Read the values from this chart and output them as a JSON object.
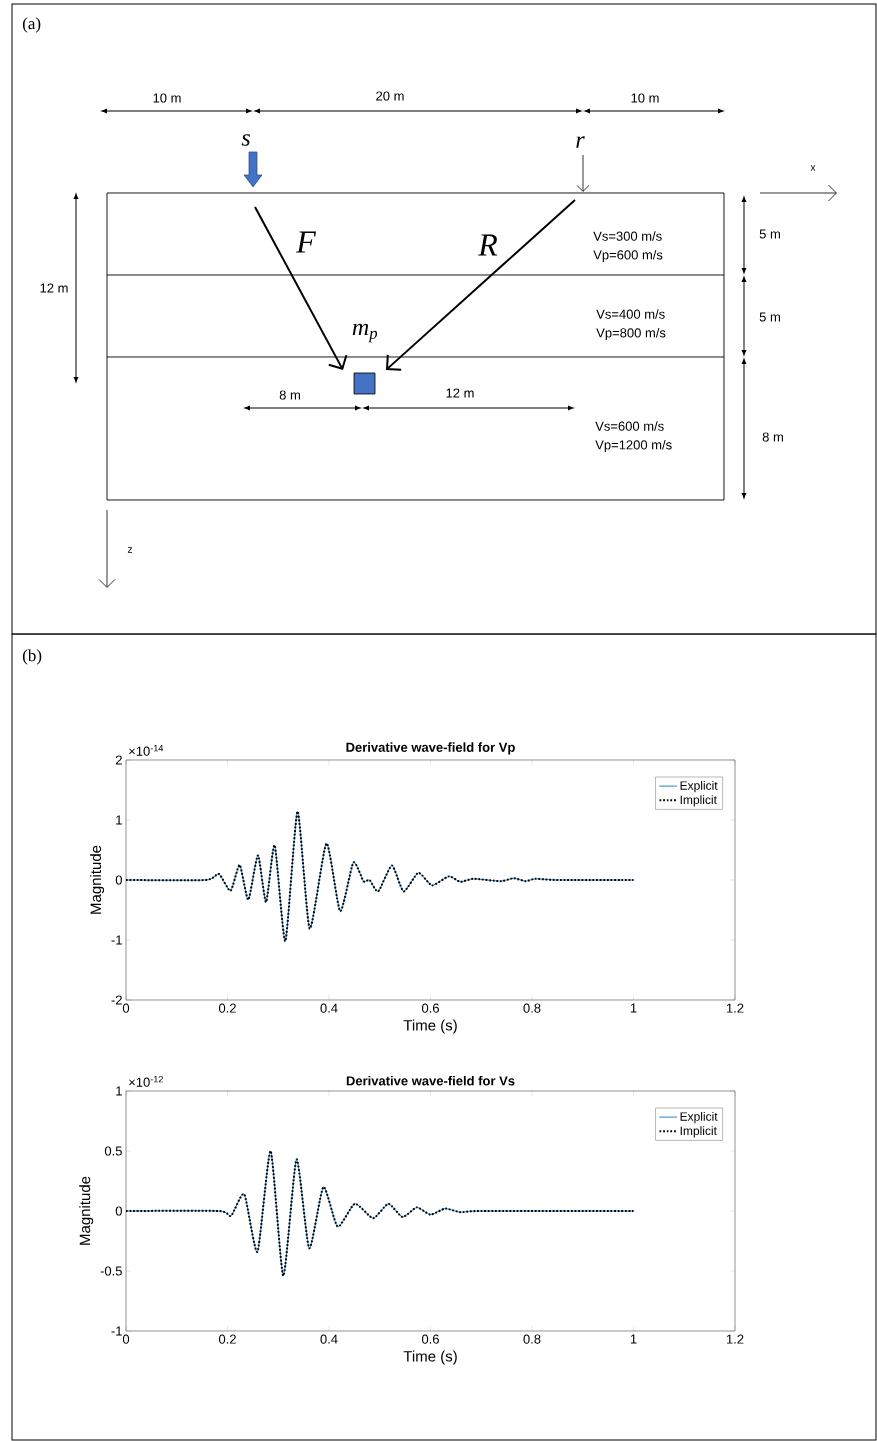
{
  "chart_data": [
    {
      "type": "other",
      "annotations": [
        "(a)",
        "10 m",
        "20 m",
        "10 m",
        "s",
        "r",
        "x",
        "F",
        "R",
        "Vs=300 m/s",
        "Vp=600 m/s",
        "12 m",
        "5 m",
        "Vs=400 m/s",
        "Vp=800 m/s",
        "5 m",
        "m$_{p}$",
        "8 m",
        "12 m",
        "Vs=600 m/s",
        "Vp=1200 m/s",
        "8 m",
        "z"
      ]
    },
    {
      "type": "line",
      "title": "Derivative wave-field for Vp",
      "xlabel": "Time (s)",
      "ylabel": "Magnitude",
      "annotations": [
        "(b)",
        "×10$^{-14}$"
      ],
      "x": [
        0,
        0.157,
        0.183,
        0.206,
        0.224,
        0.241,
        0.26,
        0.276,
        0.293,
        0.314,
        0.338,
        0.362,
        0.395,
        0.422,
        0.448,
        0.468,
        0.48,
        0.497,
        0.524,
        0.547,
        0.576,
        0.603,
        0.636,
        0.659,
        0.685,
        0.738,
        0.764,
        0.787,
        0.807,
        0.85,
        1.0
      ],
      "series": [
        {
          "name": "Explicit",
          "color": "#0072bd",
          "line_style": "solid",
          "values": [
            0,
            0,
            0.1,
            -0.18,
            0.25,
            -0.33,
            0.41,
            -0.37,
            0.58,
            -1.02,
            1.14,
            -0.81,
            0.61,
            -0.52,
            0.29,
            -0.02,
            0,
            -0.19,
            0.24,
            -0.19,
            0.12,
            -0.09,
            0.06,
            -0.03,
            0.02,
            -0.02,
            0.03,
            -0.02,
            0.02,
            0,
            0
          ]
        },
        {
          "name": "Implicit",
          "color": "#000000",
          "line_style": "dotted",
          "values": [
            0,
            0,
            0.1,
            -0.18,
            0.25,
            -0.33,
            0.41,
            -0.37,
            0.58,
            -1.02,
            1.14,
            -0.81,
            0.61,
            -0.52,
            0.29,
            -0.02,
            0,
            -0.19,
            0.24,
            -0.19,
            0.12,
            -0.09,
            0.06,
            -0.03,
            0.02,
            -0.02,
            0.03,
            -0.02,
            0.02,
            0,
            0
          ]
        }
      ],
      "xlim": [
        0,
        1.2
      ],
      "xticks": [
        0,
        0.2,
        0.4,
        0.6,
        0.8,
        1,
        1.2
      ],
      "ylim": [
        -2,
        2
      ],
      "yticks": [
        -2,
        -1,
        0,
        1,
        2
      ],
      "legend": "top right",
      "marker": "none",
      "grid": false
    },
    {
      "type": "line",
      "title": "Derivative wave-field for Vs",
      "xlabel": "Time (s)",
      "ylabel": "Magnitude",
      "annotations": [
        "×10$^{-12}$"
      ],
      "x": [
        0,
        0.183,
        0.207,
        0.233,
        0.259,
        0.285,
        0.31,
        0.336,
        0.361,
        0.389,
        0.417,
        0.451,
        0.487,
        0.517,
        0.545,
        0.573,
        0.6,
        0.629,
        0.659,
        0.7,
        1.0
      ],
      "series": [
        {
          "name": "Explicit",
          "color": "#0072bd",
          "line_style": "solid",
          "values": [
            0,
            0,
            -0.04,
            0.14,
            -0.34,
            0.5,
            -0.54,
            0.43,
            -0.31,
            0.2,
            -0.13,
            0.06,
            -0.06,
            0.06,
            -0.05,
            0.03,
            -0.03,
            0.02,
            -0.01,
            0,
            0
          ]
        },
        {
          "name": "Implicit",
          "color": "#000000",
          "line_style": "dotted",
          "values": [
            0,
            0,
            -0.04,
            0.14,
            -0.34,
            0.5,
            -0.54,
            0.43,
            -0.31,
            0.2,
            -0.13,
            0.06,
            -0.06,
            0.06,
            -0.05,
            0.03,
            -0.03,
            0.02,
            -0.01,
            0,
            0
          ]
        }
      ],
      "xlim": [
        0,
        1.2
      ],
      "xticks": [
        0,
        0.2,
        0.4,
        0.6,
        0.8,
        1,
        1.2
      ],
      "ylim": [
        -1,
        1
      ],
      "yticks": [
        -1,
        -0.5,
        0,
        0.5,
        1
      ],
      "legend": "top right",
      "marker": "none",
      "grid": false
    }
  ]
}
